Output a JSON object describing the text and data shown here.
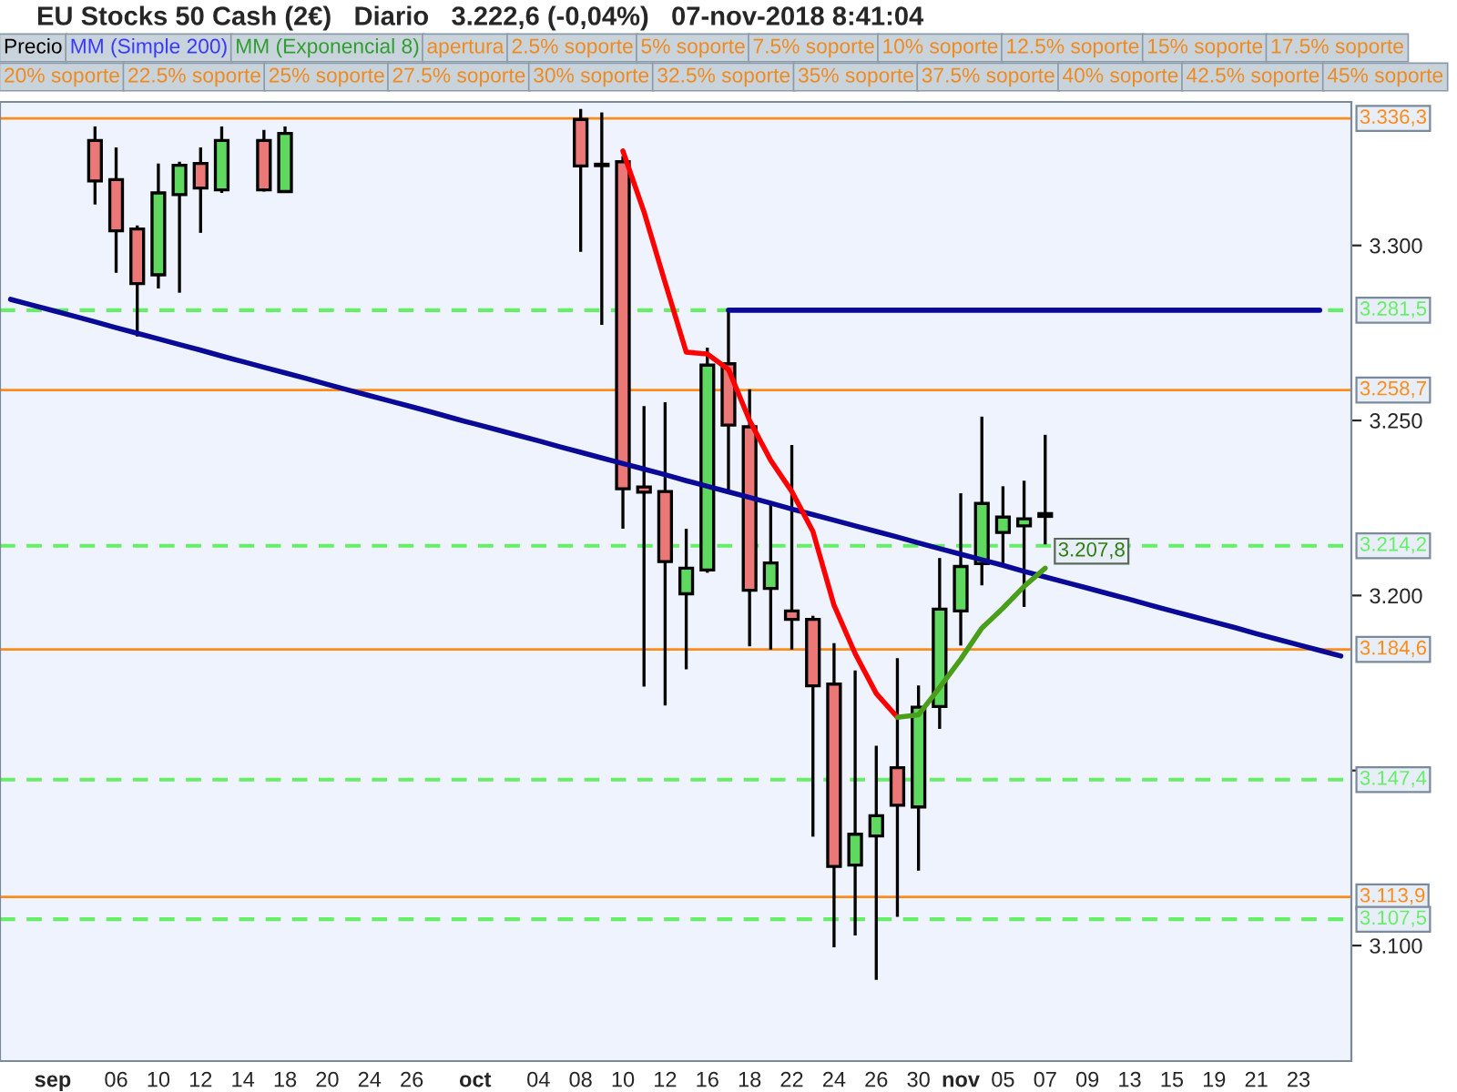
{
  "chart_data": {
    "type": "candlestick",
    "title": "EU Stocks 50 Cash (2€)   Diario   3.222,6 (-0,04%)   07-nov-2018 8:41:04",
    "categories": [
      null,
      null,
      "sep",
      null,
      null,
      "06",
      null,
      "10",
      null,
      "12",
      null,
      "14",
      null,
      "18",
      null,
      "20",
      null,
      "24",
      null,
      "26",
      null,
      null,
      "oct",
      null,
      null,
      "04",
      null,
      "08",
      null,
      "10",
      null,
      "12",
      null,
      "16",
      null,
      "18",
      null,
      "22",
      null,
      "24",
      null,
      "26",
      null,
      "30",
      null,
      "nov",
      null,
      "05",
      null,
      "07",
      null,
      "09",
      null,
      "13",
      null,
      "15",
      null,
      "19",
      null,
      "21",
      null,
      "23",
      null,
      null
    ],
    "ohlc": [
      null,
      null,
      null,
      null,
      [
        3330,
        3334,
        3311.7,
        3318.4
      ],
      [
        3318.8,
        3328,
        3292.2,
        3304.2
      ],
      [
        3304.7,
        3305.7,
        3274.0,
        3289.1
      ],
      [
        3291.6,
        3323.4,
        3287.7,
        3315.0
      ],
      [
        3314.5,
        3323.9,
        3286.5,
        3322.9
      ],
      [
        3323.4,
        3328,
        3303.6,
        3316.4
      ],
      [
        3315.9,
        3334,
        3315.0,
        3330
      ],
      null,
      [
        3330,
        3333,
        3315.4,
        3315.9
      ],
      [
        3315.4,
        3334,
        3315.4,
        3332
      ],
      null,
      null,
      null,
      null,
      null,
      null,
      null,
      null,
      null,
      null,
      null,
      null,
      null,
      [
        3336,
        3339,
        3298.2,
        3322.7
      ],
      [
        3323.2,
        3338,
        3277.3,
        3322.8
      ],
      [
        3323.9,
        3325.5,
        3219.1,
        3230.5
      ],
      [
        3231.0,
        3254.1,
        3174.0,
        3229.5
      ],
      [
        3229.7,
        3255.2,
        3168.6,
        3209.7
      ],
      [
        3200.5,
        3219.1,
        3178.9,
        3207.8
      ],
      [
        3207.3,
        3270.8,
        3206.5,
        3265.8
      ],
      [
        3266.2,
        3281.6,
        3229.2,
        3248.7
      ],
      [
        3248.2,
        3258.9,
        3185.5,
        3201.5
      ],
      [
        3202.0,
        3226.8,
        3184.6,
        3209.3
      ],
      [
        3195.6,
        3243.0,
        3184.6,
        3193.2
      ],
      [
        3193.2,
        3194.2,
        3131.1,
        3174.2
      ],
      [
        3174.7,
        3186.4,
        3099.5,
        3122.6
      ],
      [
        3123.0,
        3178.6,
        3102.9,
        3131.8
      ],
      [
        3131.3,
        3157.1,
        3090.2,
        3137.1
      ],
      [
        3150.8,
        3182.1,
        3108.2,
        3140.1
      ],
      [
        3139.6,
        3174.3,
        3121.4,
        3168.1
      ],
      [
        3168.3,
        3210.7,
        3161.9,
        3196.1
      ],
      [
        3195.6,
        3229.2,
        3185.7,
        3208.3
      ],
      [
        3209.1,
        3251.1,
        3202.9,
        3226.3
      ],
      [
        3218.0,
        3231.2,
        3208.6,
        3222.4
      ],
      [
        3219.9,
        3232.8,
        3196.7,
        3221.9
      ],
      [
        3223.4,
        3245.9,
        3214.6,
        3222.6
      ],
      null,
      null,
      null,
      null,
      null,
      null,
      null,
      null,
      null,
      null,
      null,
      null,
      null,
      null
    ],
    "colors": [
      null,
      null,
      null,
      null,
      "#ec7777",
      "#ec7777",
      "#ec7777",
      "#5fd85f",
      "#5fd85f",
      "#ec7777",
      "#5fd85f",
      null,
      "#ec7777",
      "#5fd85f",
      null,
      null,
      null,
      null,
      null,
      null,
      null,
      null,
      null,
      null,
      null,
      null,
      null,
      "#ec7777",
      "#ec7777",
      "#ec7777",
      "#ec7777",
      "#ec7777",
      "#5fd85f",
      "#5fd85f",
      "#ec7777",
      "#ec7777",
      "#5fd85f",
      "#ec7777",
      "#ec7777",
      "#ec7777",
      "#5fd85f",
      "#5fd85f",
      "#ec7777",
      "#5fd85f",
      "#5fd85f",
      "#5fd85f",
      "#5fd85f",
      "#5fd85f",
      "#5fd85f",
      "#ec7777",
      null,
      null,
      null,
      null,
      null,
      null,
      null,
      null,
      null,
      null,
      null,
      null,
      null,
      null
    ],
    "series": [
      {
        "type": "line",
        "color": "#0a0a96",
        "values": [
          3284.6,
          3283.0,
          3281.4,
          3279.8,
          3278.2,
          3276.5,
          3274.9,
          3273.3,
          3271.7,
          3270.1,
          3268.4,
          3266.8,
          3265.2,
          3263.6,
          3262.0,
          3260.3,
          3258.7,
          3257.1,
          3255.5,
          3253.9,
          3252.3,
          3250.6,
          3249.0,
          3247.4,
          3245.8,
          3244.2,
          3242.5,
          3240.9,
          3239.3,
          3237.7,
          3236.1,
          3234.5,
          3232.8,
          3231.2,
          3229.6,
          3228.0,
          3226.4,
          3224.7,
          3223.1,
          3221.5,
          3219.9,
          3218.3,
          3216.7,
          3215.0,
          3213.4,
          3211.8,
          3210.2,
          3208.6,
          3206.9,
          3205.3,
          3203.7,
          3202.1,
          3200.5,
          3198.9,
          3197.2,
          3195.6,
          3194.0,
          3192.4,
          3190.8,
          3189.1,
          3187.5,
          3185.9,
          3184.3,
          3182.7
        ]
      },
      {
        "type": "line",
        "color": "#0a0a96",
        "values": [
          null,
          null,
          null,
          null,
          null,
          null,
          null,
          null,
          null,
          null,
          null,
          null,
          null,
          null,
          null,
          null,
          null,
          null,
          null,
          null,
          null,
          null,
          null,
          null,
          null,
          null,
          null,
          null,
          null,
          null,
          null,
          null,
          null,
          null,
          3281.5,
          3281.5,
          3281.5,
          3281.5,
          3281.5,
          3281.5,
          3281.5,
          3281.5,
          3281.5,
          3281.5,
          3281.5,
          3281.5,
          3281.5,
          3281.5,
          3281.5,
          3281.5,
          3281.5,
          3281.5,
          3281.5,
          3281.5,
          3281.5,
          3281.5,
          3281.5,
          3281.5,
          3281.5,
          3281.5,
          3281.5,
          3281.5,
          3281.5,
          null
        ]
      },
      {
        "type": "line",
        "color": "#ff0000",
        "values": [
          null,
          null,
          null,
          null,
          null,
          null,
          null,
          null,
          null,
          null,
          null,
          null,
          null,
          null,
          null,
          null,
          null,
          null,
          null,
          null,
          null,
          null,
          null,
          null,
          null,
          null,
          null,
          null,
          null,
          3327,
          3309.6,
          3289.4,
          3269.5,
          3269.0,
          3264.6,
          3250.0,
          3238.6,
          3229.7,
          3218.3,
          3197.2,
          3183.4,
          3172.0,
          3165.2,
          null,
          null,
          null,
          null,
          null,
          null,
          null,
          null,
          null,
          null,
          null,
          null,
          null,
          null,
          null,
          null,
          null,
          null,
          null,
          null,
          null
        ]
      },
      {
        "type": "line",
        "color": "#4a9e1a",
        "values": [
          null,
          null,
          null,
          null,
          null,
          null,
          null,
          null,
          null,
          null,
          null,
          null,
          null,
          null,
          null,
          null,
          null,
          null,
          null,
          null,
          null,
          null,
          null,
          null,
          null,
          null,
          null,
          null,
          null,
          null,
          null,
          null,
          null,
          null,
          null,
          null,
          null,
          null,
          null,
          null,
          null,
          null,
          3165.2,
          3165.9,
          3173.7,
          3181.8,
          3190.7,
          3196.4,
          3202.6,
          3207.8,
          null,
          null,
          null,
          null,
          null,
          null,
          null,
          null,
          null,
          null,
          null,
          null,
          null,
          null
        ],
        "value_labels": [
          null,
          null,
          null,
          null,
          null,
          null,
          null,
          null,
          null,
          null,
          null,
          null,
          null,
          null,
          null,
          null,
          null,
          null,
          null,
          null,
          null,
          null,
          null,
          null,
          null,
          null,
          null,
          null,
          null,
          null,
          null,
          null,
          null,
          null,
          null,
          null,
          null,
          null,
          null,
          null,
          null,
          null,
          null,
          null,
          null,
          null,
          null,
          null,
          null,
          "3.207,8",
          null,
          null,
          null,
          null,
          null,
          null,
          null,
          null,
          null,
          null,
          null,
          null,
          null,
          null
        ]
      }
    ],
    "ylim": [
      3067,
      3341
    ],
    "yticks": [
      {
        "value": 3100,
        "label": "3.100"
      },
      {
        "value": 3150,
        "label": null
      },
      {
        "value": 3200,
        "label": "3.200"
      },
      {
        "value": 3250,
        "label": "3.250"
      },
      {
        "value": 3300,
        "label": "3.300"
      }
    ],
    "ref_lines": [
      {
        "axis": "y",
        "value": 3336.3,
        "label": "3.336,3",
        "color": "#ff8c1a",
        "line_style": "solid"
      },
      {
        "axis": "y",
        "value": 3281.5,
        "label": "3.281,5",
        "color": "#66ee66",
        "line_style": "dashed"
      },
      {
        "axis": "y",
        "value": 3258.7,
        "label": "3.258,7",
        "color": "#ff8c1a",
        "line_style": "solid"
      },
      {
        "axis": "y",
        "value": 3214.2,
        "label": "3.214,2",
        "color": "#66ee66",
        "line_style": "dashed"
      },
      {
        "axis": "y",
        "value": 3184.6,
        "label": "3.184,6",
        "color": "#ff8c1a",
        "line_style": "solid"
      },
      {
        "axis": "y",
        "value": 3147.4,
        "label": "3.147,4",
        "color": "#66ee66",
        "line_style": "dashed"
      },
      {
        "axis": "y",
        "value": 3113.9,
        "label": "3.113,9",
        "color": "#ff8c1a",
        "line_style": "solid"
      },
      {
        "axis": "y",
        "value": 3107.5,
        "label": "3.107,5",
        "color": "#66ee66",
        "line_style": "dashed"
      }
    ],
    "annotations": [
      "Precio",
      "MM (Simple 200)",
      "MM (Exponencial 8)",
      "apertura",
      "2.5% soporte",
      "5% soporte",
      "7.5% soporte",
      "10% soporte",
      "12.5% soporte",
      "15% soporte",
      "17.5% soporte",
      "20% soporte",
      "22.5% soporte",
      "25% soporte",
      "27.5% soporte",
      "30% soporte",
      "32.5% soporte",
      "35% soporte",
      "37.5% soporte",
      "40% soporte",
      "42.5% soporte",
      "45% soporte"
    ]
  }
}
